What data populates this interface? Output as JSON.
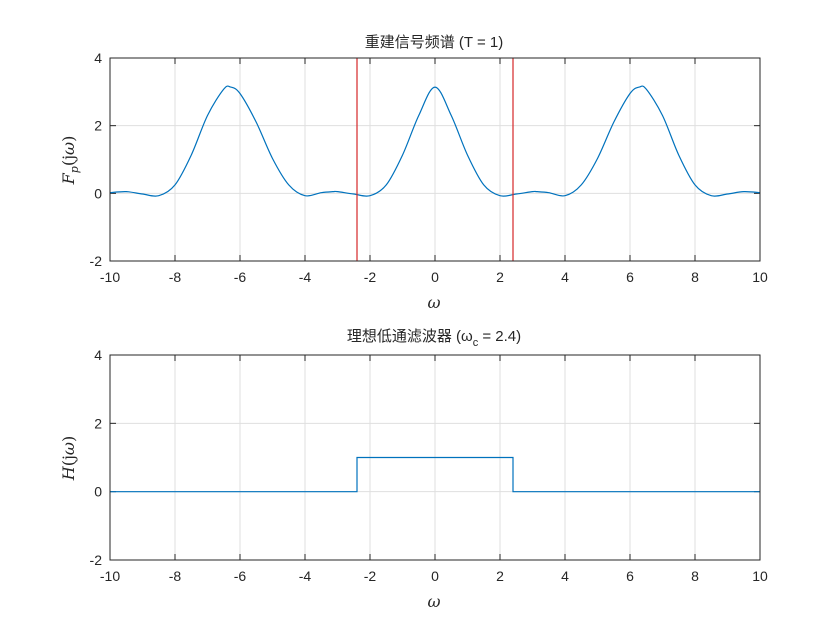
{
  "chart_data": [
    {
      "type": "line",
      "title": "重建信号频谱 (T = 1)",
      "xlabel": "ω",
      "ylabel": "F_p(jω)",
      "xlim": [
        -10,
        10
      ],
      "ylim": [
        -2,
        4
      ],
      "grid": true,
      "xticks": [
        "-10",
        "-8",
        "-6",
        "-4",
        "-2",
        "0",
        "2",
        "4",
        "6",
        "8",
        "10"
      ],
      "yticks": [
        "-2",
        "0",
        "2",
        "4"
      ],
      "series": [
        {
          "color": "#0072BD",
          "x": [
            -10,
            -9.5,
            -9,
            -8.5,
            -8,
            -7.5,
            -7,
            -6.5,
            -6.283,
            -6,
            -5.5,
            -5,
            -4.5,
            -4,
            -3.5,
            -3.14,
            -3,
            -2.5,
            -2,
            -1.5,
            -1,
            -0.5,
            0,
            0.5,
            1,
            1.5,
            2,
            2.5,
            3,
            3.14,
            3.5,
            4,
            4.5,
            5,
            5.5,
            6,
            6.283,
            6.5,
            7,
            7.5,
            8,
            8.5,
            9,
            9.5,
            10
          ],
          "values": [
            0.02,
            0.05,
            -0.02,
            -0.07,
            0.25,
            1.13,
            2.3,
            3.08,
            3.14,
            2.95,
            2.1,
            1.03,
            0.25,
            -0.07,
            0.02,
            0.05,
            0.05,
            -0.02,
            -0.07,
            0.25,
            1.13,
            2.3,
            3.14,
            2.3,
            1.13,
            0.25,
            -0.07,
            -0.02,
            0.05,
            0.05,
            0.02,
            -0.07,
            0.25,
            1.03,
            2.1,
            2.95,
            3.14,
            3.08,
            2.3,
            1.13,
            0.25,
            -0.07,
            -0.02,
            0.05,
            0.02
          ]
        }
      ],
      "vlines": [
        {
          "x": -2.4,
          "color": "#D62728"
        },
        {
          "x": 2.4,
          "color": "#D62728"
        }
      ]
    },
    {
      "type": "line",
      "title": "理想低通滤波器 (ω",
      "title_sub": "c",
      "title_tail": " = 2.4)",
      "xlabel": "ω",
      "ylabel": "H(jω)",
      "xlim": [
        -10,
        10
      ],
      "ylim": [
        -2,
        4
      ],
      "grid": true,
      "xticks": [
        "-10",
        "-8",
        "-6",
        "-4",
        "-2",
        "0",
        "2",
        "4",
        "6",
        "8",
        "10"
      ],
      "yticks": [
        "-2",
        "0",
        "2",
        "4"
      ],
      "series": [
        {
          "color": "#0072BD",
          "x": [
            -10,
            -2.4,
            -2.4,
            2.4,
            2.4,
            10
          ],
          "values": [
            0,
            0,
            1,
            1,
            0,
            0
          ]
        }
      ]
    }
  ]
}
